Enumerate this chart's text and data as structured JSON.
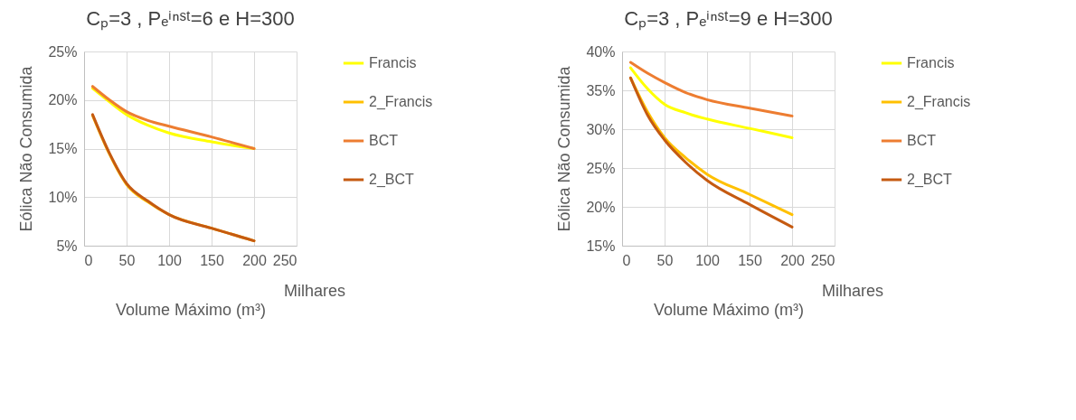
{
  "chart_data": [
    {
      "type": "line",
      "title": "Cₚ=3 , Pₑⁱⁿˢᵗ=6 e H=300",
      "xlabel": "Volume Máximo (m³)",
      "ylabel": "Eólica Não Consumida",
      "annotations": [
        "Milhares"
      ],
      "xlim": [
        0,
        250
      ],
      "xticks": [
        0,
        50,
        100,
        150,
        200,
        250
      ],
      "ylim": [
        5,
        25
      ],
      "yticks": [
        {
          "value": 5,
          "label": "5%"
        },
        {
          "value": 10,
          "label": "10%"
        },
        {
          "value": 15,
          "label": "15%"
        },
        {
          "value": 20,
          "label": "20%"
        },
        {
          "value": 25,
          "label": "25%"
        }
      ],
      "grid": true,
      "legend": "right",
      "marker": "none",
      "line_style": "solid",
      "series": [
        {
          "name": "Francis",
          "color": "#ffff00",
          "x": [
            10,
            30,
            50,
            75,
            100,
            150,
            200
          ],
          "values": [
            21.2,
            19.8,
            18.5,
            17.4,
            16.6,
            15.7,
            15.0
          ]
        },
        {
          "name": "2_Francis",
          "color": "#ffc000",
          "x": [
            10,
            30,
            50,
            75,
            100,
            150,
            200
          ],
          "values": [
            18.4,
            14.4,
            11.3,
            9.5,
            8.2,
            6.8,
            5.5
          ]
        },
        {
          "name": "BCT",
          "color": "#ed7d31",
          "x": [
            10,
            30,
            50,
            75,
            100,
            150,
            200
          ],
          "values": [
            21.4,
            20.0,
            18.8,
            17.9,
            17.3,
            16.2,
            15.0
          ]
        },
        {
          "name": "2_BCT",
          "color": "#c55a11",
          "x": [
            10,
            30,
            50,
            75,
            100,
            150,
            200
          ],
          "values": [
            18.5,
            14.5,
            11.4,
            9.6,
            8.2,
            6.8,
            5.5
          ]
        }
      ]
    },
    {
      "type": "line",
      "title": "Cₚ=3 , Pₑⁱⁿˢᵗ=9 e H=300",
      "xlabel": "Volume Máximo (m³)",
      "ylabel": "Eólica Não Consumida",
      "annotations": [
        "Milhares"
      ],
      "xlim": [
        0,
        250
      ],
      "xticks": [
        0,
        50,
        100,
        150,
        200,
        250
      ],
      "ylim": [
        15,
        40
      ],
      "yticks": [
        {
          "value": 15,
          "label": "15%"
        },
        {
          "value": 20,
          "label": "20%"
        },
        {
          "value": 25,
          "label": "25%"
        },
        {
          "value": 30,
          "label": "30%"
        },
        {
          "value": 35,
          "label": "35%"
        },
        {
          "value": 40,
          "label": "40%"
        }
      ],
      "grid": true,
      "legend": "right",
      "marker": "none",
      "line_style": "solid",
      "series": [
        {
          "name": "Francis",
          "color": "#ffff00",
          "x": [
            10,
            30,
            50,
            75,
            100,
            150,
            200
          ],
          "values": [
            37.9,
            35.2,
            33.2,
            32.1,
            31.3,
            30.1,
            28.9
          ]
        },
        {
          "name": "2_Francis",
          "color": "#ffc000",
          "x": [
            10,
            30,
            50,
            75,
            100,
            150,
            200
          ],
          "values": [
            36.6,
            32.2,
            28.9,
            26.3,
            24.2,
            21.6,
            19.0
          ]
        },
        {
          "name": "BCT",
          "color": "#ed7d31",
          "x": [
            10,
            30,
            50,
            75,
            100,
            150,
            200
          ],
          "values": [
            38.6,
            37.2,
            36.0,
            34.7,
            33.8,
            32.7,
            31.7
          ]
        },
        {
          "name": "2_BCT",
          "color": "#c55a11",
          "x": [
            10,
            30,
            50,
            75,
            100,
            150,
            200
          ],
          "values": [
            36.6,
            31.8,
            28.6,
            25.7,
            23.4,
            20.3,
            17.4
          ]
        }
      ]
    }
  ]
}
